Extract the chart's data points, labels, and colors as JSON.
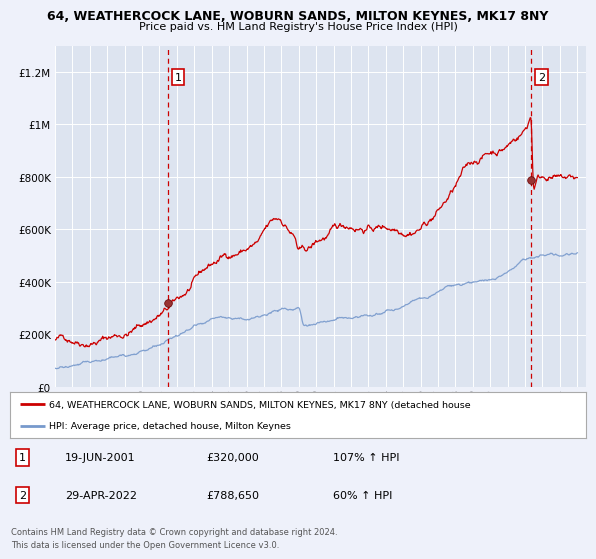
{
  "title1": "64, WEATHERCOCK LANE, WOBURN SANDS, MILTON KEYNES, MK17 8NY",
  "title2": "Price paid vs. HM Land Registry's House Price Index (HPI)",
  "background_color": "#eef1fa",
  "plot_bg_color": "#dde4f0",
  "grid_color": "#ffffff",
  "red_line_color": "#cc0000",
  "blue_line_color": "#7799cc",
  "ylim": [
    0,
    1300000
  ],
  "xlim_start": 1995.0,
  "xlim_end": 2025.5,
  "yticks": [
    0,
    200000,
    400000,
    600000,
    800000,
    1000000,
    1200000
  ],
  "ytick_labels": [
    "£0",
    "£200K",
    "£400K",
    "£600K",
    "£800K",
    "£1M",
    "£1.2M"
  ],
  "xticks": [
    1995,
    1996,
    1997,
    1998,
    1999,
    2000,
    2001,
    2002,
    2003,
    2004,
    2005,
    2006,
    2007,
    2008,
    2009,
    2010,
    2011,
    2012,
    2013,
    2014,
    2015,
    2016,
    2017,
    2018,
    2019,
    2020,
    2021,
    2022,
    2023,
    2024,
    2025
  ],
  "marker1_x": 2001.47,
  "marker1_y": 320000,
  "marker2_x": 2022.33,
  "marker2_y": 788650,
  "vline1_x": 2001.47,
  "vline2_x": 2022.33,
  "legend_label1": "64, WEATHERCOCK LANE, WOBURN SANDS, MILTON KEYNES, MK17 8NY (detached house",
  "legend_label2": "HPI: Average price, detached house, Milton Keynes",
  "table_rows": [
    {
      "num": "1",
      "date": "19-JUN-2001",
      "price": "£320,000",
      "hpi": "107% ↑ HPI"
    },
    {
      "num": "2",
      "date": "29-APR-2022",
      "price": "£788,650",
      "hpi": "60% ↑ HPI"
    }
  ],
  "footer_line1": "Contains HM Land Registry data © Crown copyright and database right 2024.",
  "footer_line2": "This data is licensed under the Open Government Licence v3.0."
}
